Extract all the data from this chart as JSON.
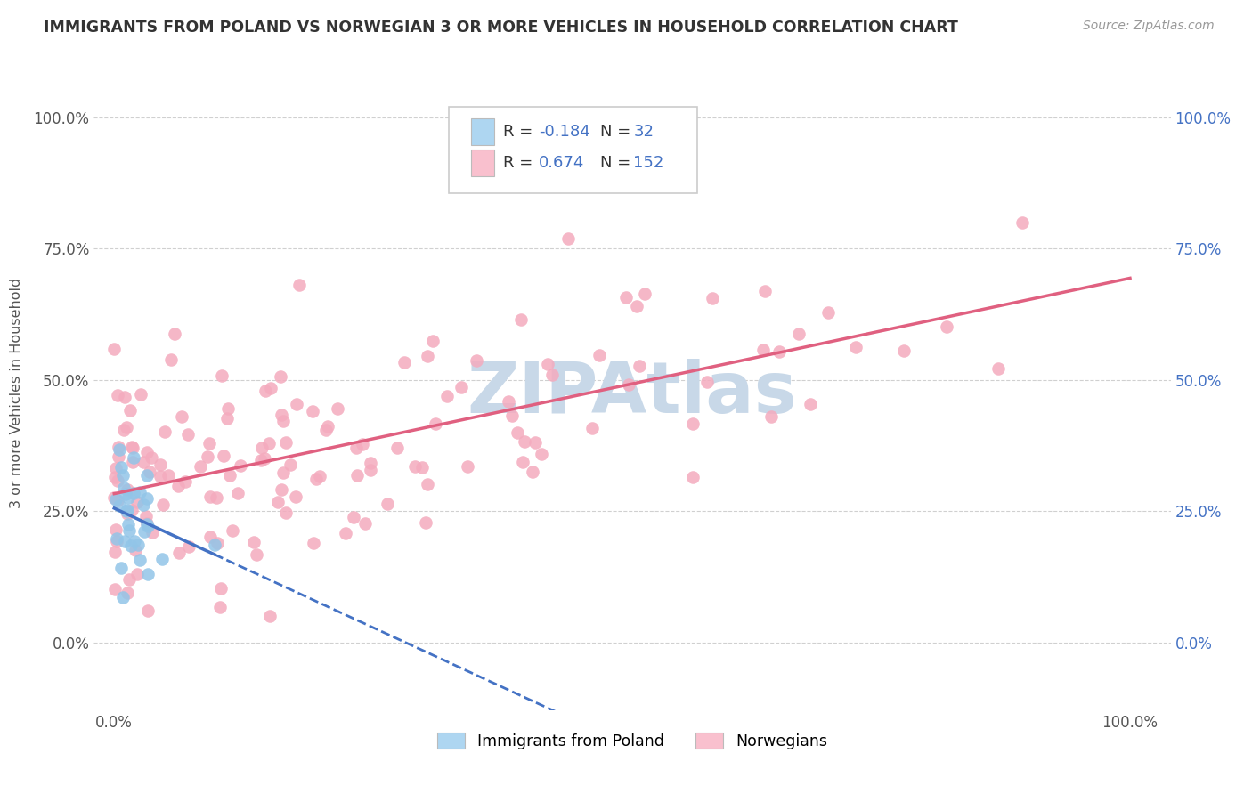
{
  "title": "IMMIGRANTS FROM POLAND VS NORWEGIAN 3 OR MORE VEHICLES IN HOUSEHOLD CORRELATION CHART",
  "source": "Source: ZipAtlas.com",
  "ylabel": "3 or more Vehicles in Household",
  "y_tick_vals": [
    0.0,
    0.25,
    0.5,
    0.75,
    1.0
  ],
  "color_poland": "#92C5E8",
  "color_norway": "#F4ABBE",
  "color_poland_line": "#4472C4",
  "color_norway_line": "#E06080",
  "legend_fill_poland": "#AED6F1",
  "legend_fill_norway": "#F9C0CE",
  "watermark_color": "#c8d8e8",
  "R_poland": -0.184,
  "N_poland": 32,
  "R_norway": 0.674,
  "N_norway": 152,
  "seed": 123
}
